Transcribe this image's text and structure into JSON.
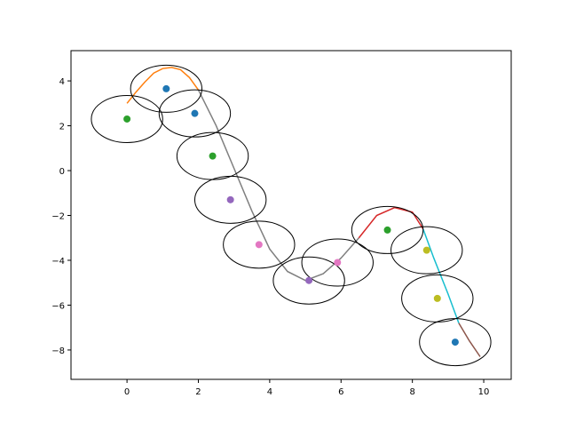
{
  "chart_data": {
    "type": "scatter",
    "xlim": [
      -1.57,
      10.77
    ],
    "ylim": [
      -9.31,
      5.35
    ],
    "xticks": [
      0,
      2,
      4,
      6,
      8,
      10
    ],
    "yticks": [
      {
        "value": -8,
        "label": "−8"
      },
      {
        "value": -6,
        "label": "−6"
      },
      {
        "value": -4,
        "label": "−4"
      },
      {
        "value": -2,
        "label": "−2"
      },
      0,
      2,
      4
    ],
    "x": [
      1.1,
      1.9,
      0,
      2.4,
      2.9,
      3.7,
      5.1,
      5.9,
      7.3,
      8.4,
      8.7,
      9.2
    ],
    "y": [
      3.65,
      2.55,
      2.3,
      0.65,
      -1.3,
      -3.3,
      -4.9,
      -4.1,
      -2.65,
      -3.55,
      -5.7,
      -7.65
    ],
    "colors": [
      "#1f77b4",
      "#1f77b4",
      "#2ca02c",
      "#2ca02c",
      "#9467bd",
      "#e377c2",
      "#9467bd",
      "#e377c2",
      "#2ca02c",
      "#bcbd22",
      "#bcbd22",
      "#1f77b4"
    ],
    "ellipse_width": 2.0,
    "ellipse_height": 2.1,
    "lines": [
      {
        "color": "#ff7f0e",
        "x": [
          0,
          0.25,
          0.5,
          0.75,
          1,
          1.25,
          1.5,
          1.75,
          2
        ],
        "y": [
          3.0,
          3.5,
          3.95,
          4.35,
          4.55,
          4.6,
          4.5,
          4.15,
          3.6
        ]
      },
      {
        "color": "#7f7f7f",
        "x": [
          2,
          2.5,
          3,
          3.5,
          4,
          4.5,
          5,
          5.5,
          6,
          6.5
        ],
        "y": [
          3.6,
          2.0,
          0.1,
          -1.8,
          -3.5,
          -4.5,
          -4.9,
          -4.6,
          -3.9,
          -3.0
        ]
      },
      {
        "color": "#d62728",
        "x": [
          6.5,
          7,
          7.5,
          8,
          8.3
        ],
        "y": [
          -3.0,
          -2.0,
          -1.65,
          -1.85,
          -2.6
        ]
      },
      {
        "color": "#17becf",
        "x": [
          8.3,
          8.6,
          9,
          9.3
        ],
        "y": [
          -2.6,
          -3.9,
          -5.5,
          -6.8
        ]
      },
      {
        "color": "#8c564b",
        "x": [
          9.3,
          9.6,
          9.9
        ],
        "y": [
          -6.8,
          -7.6,
          -8.3
        ]
      }
    ]
  }
}
